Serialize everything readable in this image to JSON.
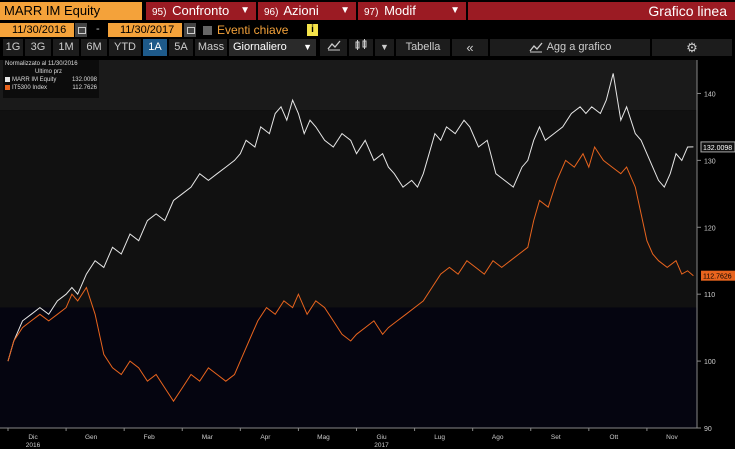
{
  "header": {
    "ticker": "MARR IM Equity",
    "buttons": [
      {
        "num": "95)",
        "label": "Confronto"
      },
      {
        "num": "96)",
        "label": "Azioni"
      },
      {
        "num": "97)",
        "label": "Modif"
      }
    ],
    "title": "Grafico linea"
  },
  "daterow": {
    "start": "11/30/2016",
    "separator": "-",
    "end": "11/30/2017",
    "events_label": "Eventi chiave",
    "info": "i"
  },
  "toolbar": {
    "periods": [
      "1G",
      "3G",
      "1M",
      "6M",
      "YTD",
      "1A",
      "5A",
      "Mass"
    ],
    "active_period": "1A",
    "frequency": "Giornaliero",
    "table_label": "Tabella",
    "back_label": "«",
    "add_label": "Agg a grafico"
  },
  "colors": {
    "accent": "#f4a23a",
    "header_red": "#9b1b23",
    "series_white": "#e6e6e6",
    "series_orange": "#e8641e",
    "active_blue": "#1e5a8a"
  },
  "chart_data": {
    "type": "line",
    "legend_title": "Normalizzato al 11/30/2016",
    "legend_subtitle": "Ultimo prz",
    "ylim": [
      90,
      145
    ],
    "y_ticks": [
      90,
      100,
      110,
      120,
      130,
      140
    ],
    "x_tick_labels": [
      "Dic",
      "Gen",
      "Feb",
      "Mar",
      "Apr",
      "Mag",
      "Giu",
      "Lug",
      "Ago",
      "Set",
      "Ott",
      "Nov"
    ],
    "x_year_labels": {
      "Dic": "2016",
      "Giu": "2017"
    },
    "months": [
      0,
      1,
      2,
      3,
      4,
      5,
      6,
      7,
      8,
      9,
      10,
      11,
      12
    ],
    "series": [
      {
        "name": "MARR IM Equity",
        "last_label": "132.0098",
        "color": "#e6e6e6",
        "points": [
          [
            0,
            100
          ],
          [
            0.1,
            103
          ],
          [
            0.25,
            106
          ],
          [
            0.4,
            107
          ],
          [
            0.55,
            108
          ],
          [
            0.7,
            107
          ],
          [
            0.85,
            109
          ],
          [
            1,
            110
          ],
          [
            1.1,
            111
          ],
          [
            1.2,
            110
          ],
          [
            1.35,
            113
          ],
          [
            1.5,
            115
          ],
          [
            1.65,
            114
          ],
          [
            1.8,
            117
          ],
          [
            1.95,
            116
          ],
          [
            2.1,
            119
          ],
          [
            2.25,
            118
          ],
          [
            2.4,
            121
          ],
          [
            2.55,
            122
          ],
          [
            2.7,
            121
          ],
          [
            2.85,
            124
          ],
          [
            3.0,
            125
          ],
          [
            3.15,
            126
          ],
          [
            3.3,
            128
          ],
          [
            3.45,
            127
          ],
          [
            3.6,
            128
          ],
          [
            3.75,
            129
          ],
          [
            3.9,
            130
          ],
          [
            4.0,
            131
          ],
          [
            4.1,
            133
          ],
          [
            4.25,
            132
          ],
          [
            4.35,
            135
          ],
          [
            4.5,
            134
          ],
          [
            4.6,
            137
          ],
          [
            4.7,
            138
          ],
          [
            4.8,
            136
          ],
          [
            4.9,
            139
          ],
          [
            5.0,
            137
          ],
          [
            5.1,
            134
          ],
          [
            5.2,
            136
          ],
          [
            5.3,
            135
          ],
          [
            5.45,
            133
          ],
          [
            5.6,
            132
          ],
          [
            5.75,
            134
          ],
          [
            5.9,
            133
          ],
          [
            6.0,
            131
          ],
          [
            6.15,
            133
          ],
          [
            6.3,
            130
          ],
          [
            6.45,
            131
          ],
          [
            6.55,
            129
          ],
          [
            6.65,
            128
          ],
          [
            6.8,
            126
          ],
          [
            6.95,
            127
          ],
          [
            7.05,
            126
          ],
          [
            7.15,
            128
          ],
          [
            7.25,
            131
          ],
          [
            7.35,
            134
          ],
          [
            7.45,
            133
          ],
          [
            7.55,
            135
          ],
          [
            7.7,
            134
          ],
          [
            7.85,
            136
          ],
          [
            7.95,
            135
          ],
          [
            8.1,
            132
          ],
          [
            8.25,
            133
          ],
          [
            8.4,
            128
          ],
          [
            8.55,
            127
          ],
          [
            8.7,
            126
          ],
          [
            8.85,
            129
          ],
          [
            8.95,
            130
          ],
          [
            9.05,
            133
          ],
          [
            9.15,
            135
          ],
          [
            9.25,
            133
          ],
          [
            9.4,
            134
          ],
          [
            9.55,
            135
          ],
          [
            9.7,
            137
          ],
          [
            9.85,
            138
          ],
          [
            9.95,
            137
          ],
          [
            10.05,
            138
          ],
          [
            10.2,
            137
          ],
          [
            10.3,
            139
          ],
          [
            10.42,
            143
          ],
          [
            10.55,
            136
          ],
          [
            10.65,
            138
          ],
          [
            10.8,
            134
          ],
          [
            10.9,
            133
          ],
          [
            11.0,
            131
          ],
          [
            11.1,
            129
          ],
          [
            11.2,
            127
          ],
          [
            11.3,
            126
          ],
          [
            11.4,
            128
          ],
          [
            11.5,
            131
          ],
          [
            11.6,
            130
          ],
          [
            11.7,
            132
          ],
          [
            11.8,
            132.0098
          ]
        ]
      },
      {
        "name": "IT5300 Index",
        "last_label": "112.7626",
        "color": "#e8641e",
        "points": [
          [
            0,
            100
          ],
          [
            0.1,
            103
          ],
          [
            0.25,
            105
          ],
          [
            0.4,
            106
          ],
          [
            0.55,
            107
          ],
          [
            0.7,
            106
          ],
          [
            0.85,
            107
          ],
          [
            1,
            108
          ],
          [
            1.1,
            110
          ],
          [
            1.2,
            109
          ],
          [
            1.35,
            111
          ],
          [
            1.5,
            107
          ],
          [
            1.65,
            101
          ],
          [
            1.8,
            99
          ],
          [
            1.95,
            98
          ],
          [
            2.1,
            100
          ],
          [
            2.25,
            99
          ],
          [
            2.4,
            97
          ],
          [
            2.55,
            98
          ],
          [
            2.7,
            96
          ],
          [
            2.85,
            94
          ],
          [
            3.0,
            96
          ],
          [
            3.15,
            98
          ],
          [
            3.3,
            97
          ],
          [
            3.45,
            99
          ],
          [
            3.6,
            98
          ],
          [
            3.75,
            97
          ],
          [
            3.9,
            98
          ],
          [
            4.0,
            100
          ],
          [
            4.15,
            103
          ],
          [
            4.3,
            106
          ],
          [
            4.45,
            108
          ],
          [
            4.6,
            107
          ],
          [
            4.75,
            109
          ],
          [
            4.9,
            108
          ],
          [
            5.0,
            110
          ],
          [
            5.15,
            107
          ],
          [
            5.3,
            109
          ],
          [
            5.45,
            108
          ],
          [
            5.6,
            106
          ],
          [
            5.75,
            104
          ],
          [
            5.9,
            103
          ],
          [
            6.0,
            104
          ],
          [
            6.15,
            105
          ],
          [
            6.3,
            106
          ],
          [
            6.45,
            104
          ],
          [
            6.55,
            105
          ],
          [
            6.7,
            106
          ],
          [
            6.85,
            107
          ],
          [
            7.0,
            108
          ],
          [
            7.15,
            109
          ],
          [
            7.3,
            111
          ],
          [
            7.45,
            113
          ],
          [
            7.6,
            114
          ],
          [
            7.75,
            113
          ],
          [
            7.9,
            115
          ],
          [
            8.05,
            114
          ],
          [
            8.2,
            113
          ],
          [
            8.35,
            115
          ],
          [
            8.5,
            114
          ],
          [
            8.65,
            115
          ],
          [
            8.8,
            116
          ],
          [
            8.95,
            117
          ],
          [
            9.05,
            121
          ],
          [
            9.15,
            124
          ],
          [
            9.3,
            123
          ],
          [
            9.45,
            127
          ],
          [
            9.6,
            130
          ],
          [
            9.75,
            129
          ],
          [
            9.9,
            131
          ],
          [
            10.0,
            129
          ],
          [
            10.1,
            132
          ],
          [
            10.25,
            130
          ],
          [
            10.4,
            129
          ],
          [
            10.55,
            128
          ],
          [
            10.65,
            129
          ],
          [
            10.8,
            126
          ],
          [
            10.9,
            122
          ],
          [
            11.0,
            118
          ],
          [
            11.1,
            116
          ],
          [
            11.2,
            115
          ],
          [
            11.35,
            114
          ],
          [
            11.5,
            115
          ],
          [
            11.6,
            113
          ],
          [
            11.7,
            113.5
          ],
          [
            11.8,
            112.7626
          ]
        ]
      }
    ]
  }
}
